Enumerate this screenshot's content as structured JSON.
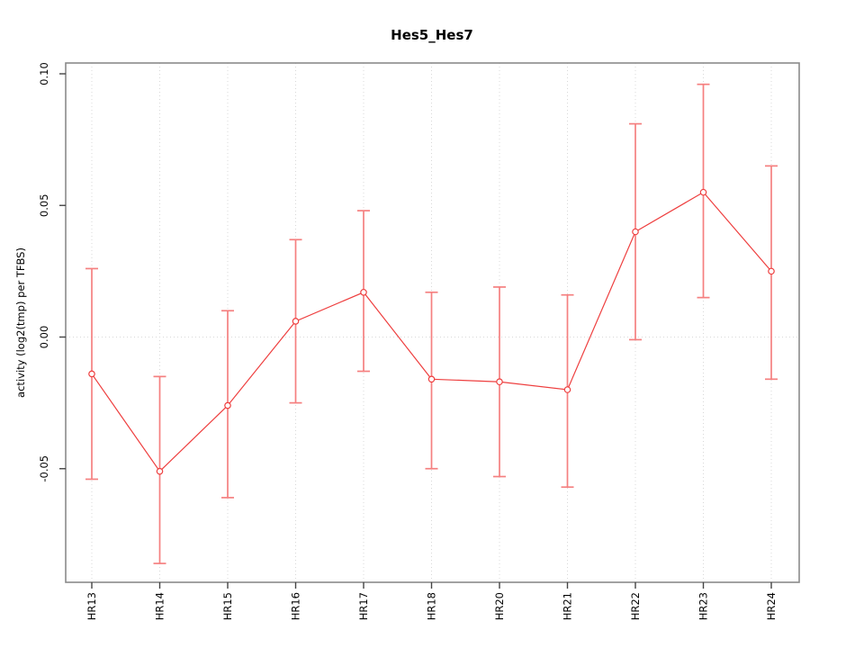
{
  "chart_data": {
    "type": "line",
    "title": "Hes5_Hes7",
    "xlabel": "",
    "ylabel": "activity (log2(tmp) per TFBS)",
    "categories": [
      "HR13",
      "HR14",
      "HR15",
      "HR16",
      "HR17",
      "HR18",
      "HR20",
      "HR21",
      "HR22",
      "HR23",
      "HR24"
    ],
    "series": [
      {
        "name": "activity",
        "values": [
          -0.014,
          -0.051,
          -0.026,
          0.006,
          0.017,
          -0.016,
          -0.017,
          -0.02,
          0.04,
          0.055,
          0.025
        ],
        "lower": [
          -0.054,
          -0.086,
          -0.061,
          -0.025,
          -0.013,
          -0.05,
          -0.053,
          -0.057,
          -0.001,
          0.015,
          -0.016
        ],
        "upper": [
          0.026,
          -0.015,
          0.01,
          0.037,
          0.048,
          0.017,
          0.019,
          0.016,
          0.081,
          0.096,
          0.065
        ]
      }
    ],
    "yticks": [
      {
        "label": "0.10",
        "value": 0.1
      },
      {
        "label": "0.05",
        "value": 0.05
      },
      {
        "label": "0.00",
        "value": 0.0
      },
      {
        "label": "-0.05",
        "value": -0.05
      }
    ],
    "ylim": [
      -0.093,
      0.104
    ],
    "grid": {
      "vertical_per_category": true,
      "horizontal_at_zero": true
    },
    "legend_position": "none",
    "colors": {
      "point_line": "#ee3f3f",
      "error_bar": "#f58080",
      "frame": "#8a8a8a",
      "tick": "#444444",
      "grid": "#d8d8d8",
      "background": "#ffffff"
    }
  }
}
